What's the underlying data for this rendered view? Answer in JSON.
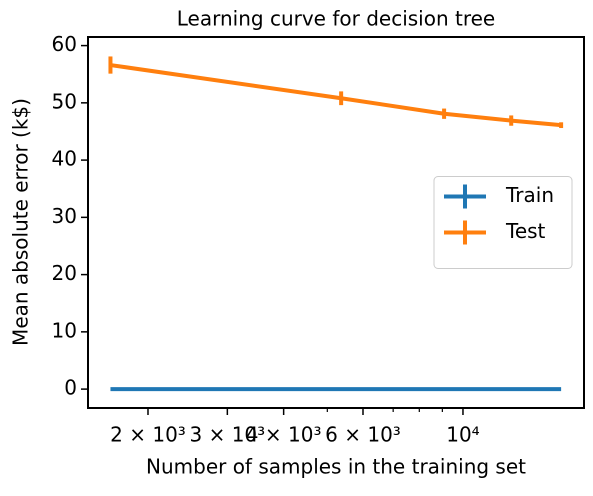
{
  "chart_data": {
    "type": "line",
    "title": "Learning curve for decision tree",
    "x_label": "Number of samples in the training set",
    "y_label": "Mean absolute error (k$)",
    "xscale": "log",
    "x": [
      1651,
      5366,
      9081,
      12796,
      16512
    ],
    "series": [
      {
        "name": "Train",
        "color": "#1f77b4",
        "values": [
          0,
          0,
          0,
          0,
          0
        ],
        "errors": [
          0,
          0,
          0,
          0,
          0
        ]
      },
      {
        "name": "Test",
        "color": "#ff7f0e",
        "values": [
          56.6,
          50.8,
          48.1,
          46.9,
          46.1
        ],
        "errors": [
          1.5,
          1.2,
          0.9,
          0.9,
          0.5
        ]
      }
    ],
    "xlim": [
      1472,
      18560
    ],
    "ylim": [
      -3.3,
      61.5
    ],
    "xticks": [
      {
        "value": 2000,
        "label": "2 × 10³"
      },
      {
        "value": 3000,
        "label": "3 × 10³"
      },
      {
        "value": 4000,
        "label": "4 × 10³"
      },
      {
        "value": 6000,
        "label": "6 × 10³"
      },
      {
        "value": 10000,
        "label": "10⁴"
      }
    ],
    "xminorticks": [
      5000,
      7000,
      8000,
      9000
    ],
    "yticks": [
      0,
      10,
      20,
      30,
      40,
      50,
      60
    ],
    "legend": "center right",
    "grid": false
  }
}
